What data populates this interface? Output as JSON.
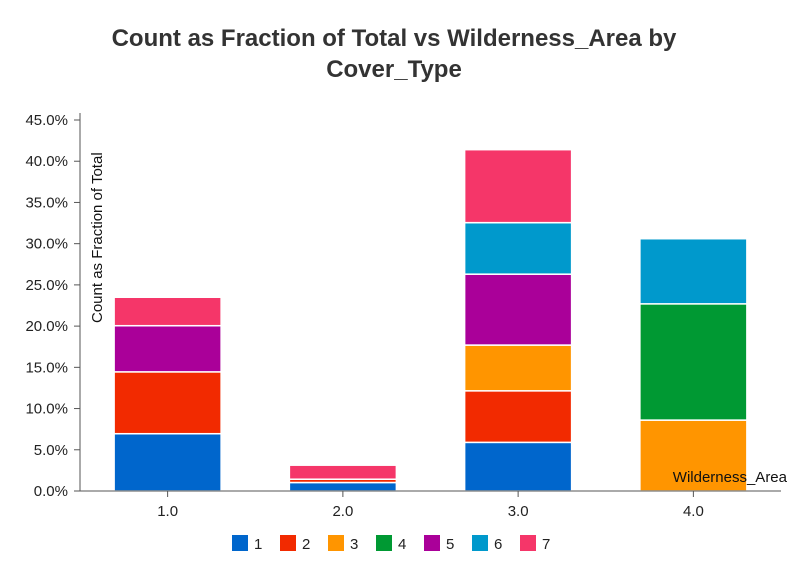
{
  "chart_data": {
    "type": "bar",
    "stacked": true,
    "title_line1": "Count as Fraction of Total vs Wilderness_Area by",
    "title_line2": "Cover_Type",
    "xlabel": "Wilderness_Area",
    "ylabel": "Count as Fraction of Total",
    "categories": [
      "1.0",
      "2.0",
      "3.0",
      "4.0"
    ],
    "ylim": [
      0,
      0.45
    ],
    "yticks": [
      {
        "value": 0.0,
        "label": "0.0%"
      },
      {
        "value": 0.05,
        "label": "5.0%"
      },
      {
        "value": 0.1,
        "label": "10.0%"
      },
      {
        "value": 0.15,
        "label": "15.0%"
      },
      {
        "value": 0.2,
        "label": "20.0%"
      },
      {
        "value": 0.25,
        "label": "25.0%"
      },
      {
        "value": 0.3,
        "label": "30.0%"
      },
      {
        "value": 0.35,
        "label": "35.0%"
      },
      {
        "value": 0.4,
        "label": "40.0%"
      },
      {
        "value": 0.45,
        "label": "45.0%"
      }
    ],
    "series": [
      {
        "name": "1",
        "color": "#0066cc",
        "values": [
          0.0695,
          0.0103,
          0.059,
          0.0
        ]
      },
      {
        "name": "2",
        "color": "#f22a00",
        "values": [
          0.075,
          0.004,
          0.0625,
          0.0
        ]
      },
      {
        "name": "3",
        "color": "#ff9500",
        "values": [
          0.0,
          0.0,
          0.0555,
          0.086
        ]
      },
      {
        "name": "4",
        "color": "#009933",
        "values": [
          0.0,
          0.0,
          0.0,
          0.141
        ]
      },
      {
        "name": "5",
        "color": "#aa0099",
        "values": [
          0.056,
          0.0,
          0.086,
          0.0
        ]
      },
      {
        "name": "6",
        "color": "#0099cc",
        "values": [
          0.0,
          0.0,
          0.0625,
          0.079
        ]
      },
      {
        "name": "7",
        "color": "#f53669",
        "values": [
          0.0345,
          0.017,
          0.0885,
          0.0
        ]
      }
    ],
    "grid": false,
    "legend_position": "bottom"
  }
}
